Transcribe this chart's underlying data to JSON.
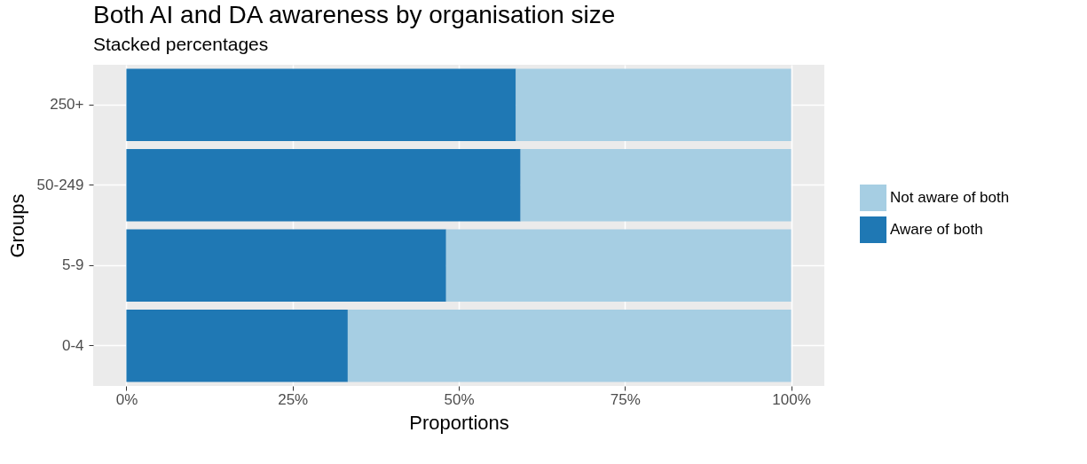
{
  "chart_data": {
    "type": "bar",
    "title": "Both AI and DA awareness by organisation size",
    "subtitle": "Stacked percentages",
    "xlabel": "Proportions",
    "ylabel": "Groups",
    "orientation": "horizontal",
    "stacked": true,
    "categories": [
      "250+",
      "50-249",
      "5-9",
      "0-4"
    ],
    "series": [
      {
        "name": "Aware of both",
        "color": "#1f78b4",
        "values": [
          58.6,
          59.3,
          48.1,
          33.3
        ]
      },
      {
        "name": "Not aware of both",
        "color": "#a6cee3",
        "values": [
          41.4,
          40.7,
          51.9,
          66.7
        ]
      }
    ],
    "xlim": [
      -5,
      105
    ],
    "xticks": [
      {
        "value": 0,
        "label": "0%"
      },
      {
        "value": 25,
        "label": "25%"
      },
      {
        "value": 50,
        "label": "50%"
      },
      {
        "value": 75,
        "label": "75%"
      },
      {
        "value": 100,
        "label": "100%"
      }
    ],
    "grid": true,
    "legend": "right"
  }
}
